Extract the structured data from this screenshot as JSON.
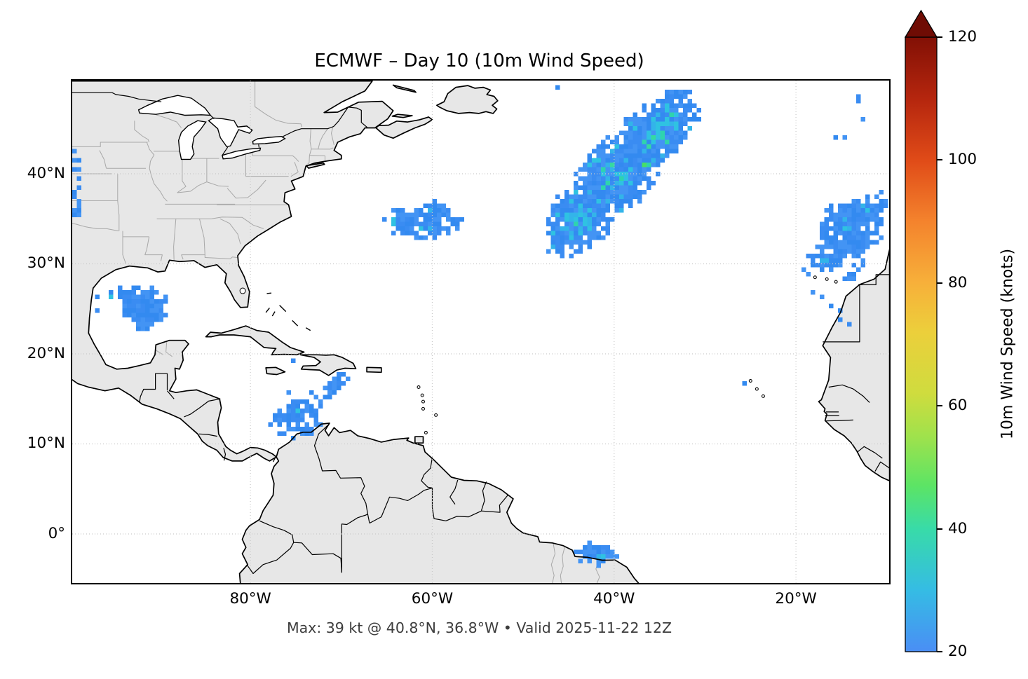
{
  "chart_data": {
    "type": "heatmap",
    "subtype": "geographic-wind-speed-map",
    "title": "ECMWF – Day 10 (10m Wind Speed)",
    "annotation": "Max: 39 kt @ 40.8°N, 36.8°W • Valid 2025-11-22 12Z",
    "extent": {
      "lon_min": -99.6,
      "lon_max": -9.75,
      "lat_min": -5.45,
      "lat_max": 50.35
    },
    "x_axis": {
      "ticks": [
        {
          "lon": -80,
          "label": "80°W"
        },
        {
          "lon": -60,
          "label": "60°W"
        },
        {
          "lon": -40,
          "label": "40°W"
        },
        {
          "lon": -20,
          "label": "20°W"
        }
      ]
    },
    "y_axis": {
      "ticks": [
        {
          "lat": 40,
          "label": "40°N"
        },
        {
          "lat": 30,
          "label": "30°N"
        },
        {
          "lat": 20,
          "label": "20°N"
        },
        {
          "lat": 10,
          "label": "10°N"
        },
        {
          "lat": 0,
          "label": "0°"
        }
      ]
    },
    "grid": {
      "style": "dotted",
      "color": "#c9c9c9",
      "lons": [
        -80,
        -60,
        -40,
        -20
      ],
      "lats": [
        40,
        30,
        20,
        10,
        0
      ]
    },
    "colorbar": {
      "label": "10m Wind Speed (knots)",
      "min": 20,
      "max": 120,
      "extend": "max",
      "ticks": [
        {
          "value": 120,
          "label": "120"
        },
        {
          "value": 100,
          "label": "100"
        },
        {
          "value": 80,
          "label": "80"
        },
        {
          "value": 60,
          "label": "60"
        },
        {
          "value": 40,
          "label": "40"
        },
        {
          "value": 20,
          "label": "20"
        }
      ],
      "arrow_color": "#6f0c04",
      "stops": [
        {
          "value": 20,
          "color": "#4a8ef5"
        },
        {
          "value": 30,
          "color": "#35bce4"
        },
        {
          "value": 40,
          "color": "#38dba8"
        },
        {
          "value": 47,
          "color": "#5ce465"
        },
        {
          "value": 55,
          "color": "#9fe24c"
        },
        {
          "value": 62,
          "color": "#cfdc3e"
        },
        {
          "value": 72,
          "color": "#eccf3b"
        },
        {
          "value": 80,
          "color": "#f7b03a"
        },
        {
          "value": 90,
          "color": "#f4832d"
        },
        {
          "value": 100,
          "color": "#e04b18"
        },
        {
          "value": 110,
          "color": "#b5260e"
        },
        {
          "value": 120,
          "color": "#821005"
        }
      ]
    },
    "max_point": {
      "value_kt": 39,
      "lat": 40.8,
      "lon": -36.8
    },
    "cell_size_deg": 0.5,
    "cell_palette": {
      "blue": {
        "colors": [
          "#3a8cf2",
          "#4394f4",
          "#338af0"
        ],
        "approx_kt": "20–27"
      },
      "cyan": {
        "colors": [
          "#33b4e9",
          "#2fc2e2"
        ],
        "approx_kt": "28–33"
      },
      "teal": {
        "colors": [
          "#2fd3ae",
          "#36d9a0"
        ],
        "approx_kt": "34–37"
      },
      "green": {
        "colors": [
          "#47e066"
        ],
        "approx_kt": "38–39"
      }
    },
    "wind_patches": [
      {
        "name": "central-us-plains",
        "palette": "blue",
        "approx_kt": "20–25",
        "lobes": [
          {
            "lon": -99.5,
            "lat": 38.6,
            "a": 4.3,
            "b": 1.05,
            "angle": 90,
            "cov": 0.62
          }
        ]
      },
      {
        "name": "west-atlantic-35n",
        "palette": "blue-cyan",
        "approx_kt": "20–30",
        "lobes": [
          {
            "lon": -60.6,
            "lat": 34.6,
            "a": 3.4,
            "b": 1.7,
            "angle": -8,
            "cov": 0.85
          },
          {
            "lon": -59.7,
            "lat": 36.1,
            "a": 2.0,
            "b": 0.9,
            "angle": -5,
            "cov": 0.8
          },
          {
            "lon": -63.6,
            "lat": 34.8,
            "a": 1.7,
            "b": 1.3,
            "angle": 0,
            "cov": 0.55
          }
        ]
      },
      {
        "name": "gulf-of-mexico",
        "palette": "blue",
        "approx_kt": "20–26",
        "lobes": [
          {
            "lon": -91.8,
            "lat": 25.3,
            "a": 2.5,
            "b": 2.3,
            "angle": 10,
            "cov": 0.97
          },
          {
            "lon": -94.0,
            "lat": 26.3,
            "a": 1.3,
            "b": 0.8,
            "angle": 0,
            "cov": 0.5
          }
        ]
      },
      {
        "name": "sw-caribbean",
        "palette": "blue",
        "approx_kt": "20–27",
        "lobes": [
          {
            "lon": -74.7,
            "lat": 12.7,
            "a": 2.4,
            "b": 2.1,
            "angle": 15,
            "cov": 0.8
          },
          {
            "lon": -72.6,
            "lat": 14.9,
            "a": 1.7,
            "b": 1.0,
            "angle": -40,
            "cov": 0.55
          },
          {
            "lon": -70.7,
            "lat": 16.6,
            "a": 1.6,
            "b": 0.7,
            "angle": -38,
            "cov": 0.6
          }
        ]
      },
      {
        "name": "mid-atlantic-storm",
        "palette": "core",
        "approx_kt": "20–39",
        "contains_max": true,
        "lobes": [
          {
            "lon": -43.6,
            "lat": 35.3,
            "a": 4.6,
            "b": 3.1,
            "angle": -50,
            "cov": 0.97
          },
          {
            "lon": -39.6,
            "lat": 40.3,
            "a": 5.2,
            "b": 3.6,
            "angle": -48,
            "cov": 0.97
          },
          {
            "lon": -35.3,
            "lat": 44.6,
            "a": 5.4,
            "b": 2.9,
            "angle": -44,
            "cov": 0.93
          }
        ]
      },
      {
        "name": "east-atlantic-madeira-canaries",
        "palette": "blue-cyan",
        "approx_kt": "20–29",
        "lobes": [
          {
            "lon": -14.0,
            "lat": 33.6,
            "a": 3.2,
            "b": 3.0,
            "angle": -30,
            "cov": 0.88
          },
          {
            "lon": -12.0,
            "lat": 36.2,
            "a": 2.2,
            "b": 1.7,
            "angle": -40,
            "cov": 0.8
          },
          {
            "lon": -16.3,
            "lat": 30.6,
            "a": 2.6,
            "b": 1.6,
            "angle": -35,
            "cov": 0.55
          },
          {
            "lon": -13.4,
            "lat": 29.3,
            "a": 1.6,
            "b": 1.1,
            "angle": -30,
            "cov": 0.5
          }
        ]
      },
      {
        "name": "brazil-north-coast",
        "palette": "blue-cyan",
        "approx_kt": "20–28",
        "lobes": [
          {
            "lon": -42.0,
            "lat": -2.35,
            "a": 2.2,
            "b": 1.15,
            "angle": 5,
            "cov": 0.95
          }
        ]
      }
    ],
    "speckles_lonlat": [
      [
        -46.2,
        49.8
      ],
      [
        -31.9,
        49.3
      ],
      [
        -13.2,
        48.5
      ],
      [
        -13.0,
        47.9
      ],
      [
        -12.5,
        45.9
      ],
      [
        -15.5,
        44.2
      ],
      [
        -14.7,
        44.2
      ],
      [
        -70.4,
        17.7
      ],
      [
        -69.9,
        17.9
      ],
      [
        -75.35,
        19.25
      ],
      [
        -75.9,
        15.5
      ],
      [
        -77.9,
        12.4
      ],
      [
        -96.7,
        26.2
      ],
      [
        -96.9,
        24.7
      ],
      [
        -17.9,
        26.7
      ],
      [
        -17.1,
        26.1
      ],
      [
        -16.3,
        25.4
      ],
      [
        -15.3,
        24.7
      ],
      [
        -14.9,
        23.9
      ],
      [
        -14.2,
        23.3
      ],
      [
        -25.8,
        16.9
      ],
      [
        -60.9,
        35.6
      ]
    ]
  },
  "map_style": {
    "land_color": "#e7e7e7",
    "ocean_color": "#ffffff",
    "coast_color": "#000000",
    "country_border_color": "#000000",
    "state_border_color": "#a8a8a8",
    "grid_color": "#c9c9c9",
    "frame_color": "#000000"
  }
}
